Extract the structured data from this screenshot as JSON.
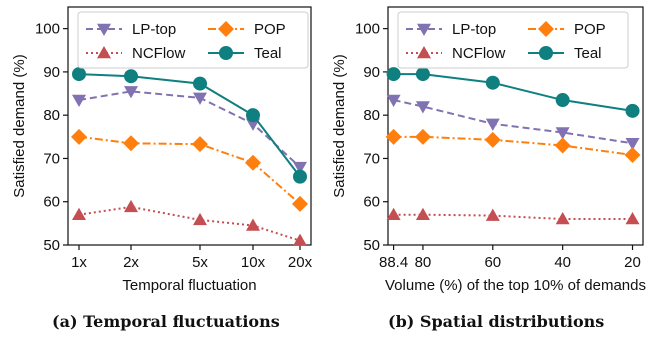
{
  "captions": [
    "(a) Temporal fluctuations",
    "(b) Spatial distributions"
  ],
  "chart_data": [
    {
      "type": "line",
      "categories": [
        "1x",
        "2x",
        "5x",
        "10x",
        "20x"
      ],
      "x_scale": "log",
      "xlabel": "Temporal fluctuation",
      "ylabel": "Satisfied demand (%)",
      "ylim": [
        50,
        105
      ],
      "yticks": [
        50,
        60,
        70,
        80,
        90,
        100
      ],
      "grid": false,
      "legend": "top, 2 columns",
      "series": [
        {
          "name": "LP-top",
          "color": "#8172b2",
          "marker": "triangle-down",
          "dash": "dashed",
          "values": [
            83.5,
            85.5,
            84.0,
            78.0,
            68.0
          ]
        },
        {
          "name": "NCFlow",
          "color": "#c44e52",
          "marker": "triangle-up",
          "dash": "dotted",
          "values": [
            57.0,
            58.8,
            55.8,
            54.5,
            51.0
          ]
        },
        {
          "name": "POP",
          "color": "#ff7f0e",
          "marker": "diamond",
          "dash": "dashdot",
          "values": [
            75.0,
            73.5,
            73.3,
            69.0,
            59.5
          ]
        },
        {
          "name": "Teal",
          "color": "#0f7f7f",
          "marker": "circle",
          "dash": "solid",
          "values": [
            89.5,
            89.0,
            87.3,
            80.0,
            65.8
          ]
        }
      ]
    },
    {
      "type": "line",
      "categories": [
        "88.4",
        "80",
        "60",
        "40",
        "20"
      ],
      "x": [
        88.4,
        80,
        60,
        40,
        20
      ],
      "xlim": [
        90,
        17
      ],
      "xlabel": "Volume (%) of the top 10% of demands",
      "ylabel": "Satisfied demand (%)",
      "ylim": [
        50,
        105
      ],
      "yticks": [
        50,
        60,
        70,
        80,
        90,
        100
      ],
      "grid": false,
      "legend": "top, 2 columns",
      "series": [
        {
          "name": "LP-top",
          "color": "#8172b2",
          "marker": "triangle-down",
          "dash": "dashed",
          "values": [
            83.5,
            82.0,
            78.0,
            76.0,
            73.5
          ]
        },
        {
          "name": "NCFlow",
          "color": "#c44e52",
          "marker": "triangle-up",
          "dash": "dotted",
          "values": [
            57.0,
            57.0,
            56.8,
            56.0,
            56.0
          ]
        },
        {
          "name": "POP",
          "color": "#ff7f0e",
          "marker": "diamond",
          "dash": "dashdot",
          "values": [
            75.0,
            75.0,
            74.3,
            73.0,
            70.8
          ]
        },
        {
          "name": "Teal",
          "color": "#0f7f7f",
          "marker": "circle",
          "dash": "solid",
          "values": [
            89.5,
            89.5,
            87.5,
            83.5,
            81.0
          ]
        }
      ]
    }
  ]
}
